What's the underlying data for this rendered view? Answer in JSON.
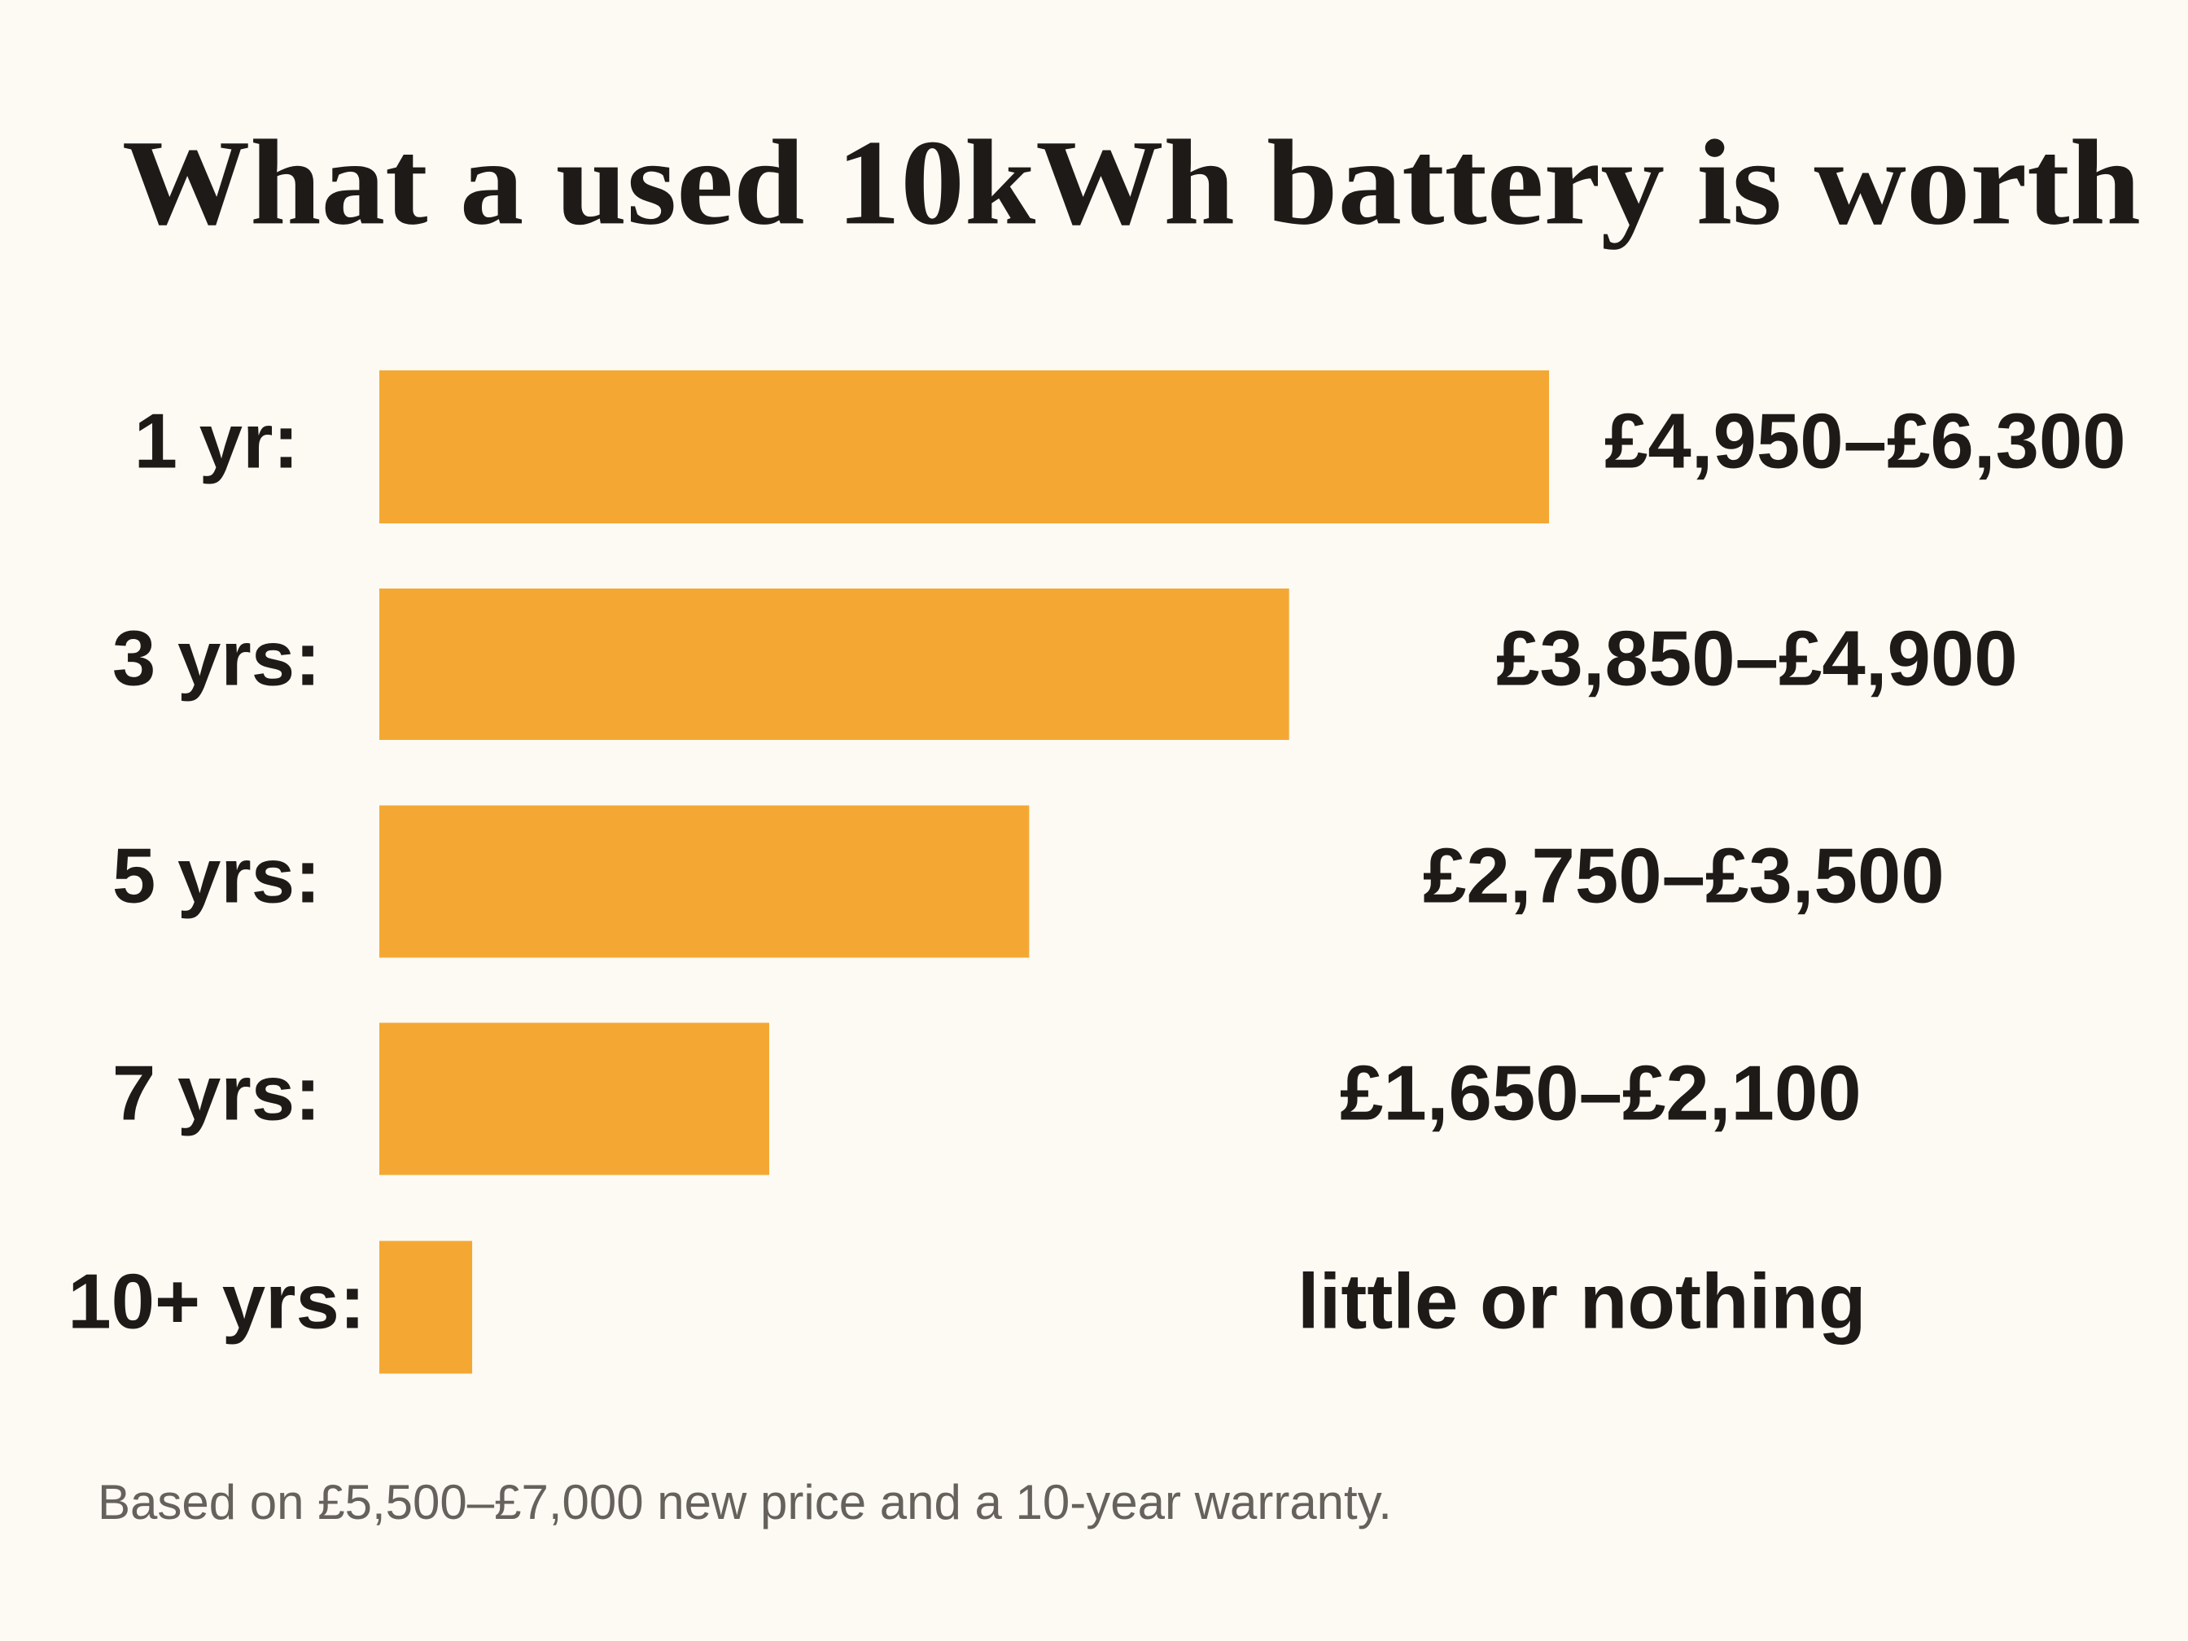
{
  "chart_data": {
    "type": "bar",
    "orientation": "horizontal",
    "title": "What a used 10kWh battery is worth",
    "categories": [
      "1 yr:",
      "3 yrs:",
      "5 yrs:",
      "7 yrs:",
      "10+ yrs:"
    ],
    "values": [
      6300,
      4900,
      3500,
      2100,
      500
    ],
    "value_labels": [
      "£4,950–£6,300",
      "£3,850–£4,900",
      "£2,750–£3,500",
      "£1,650–£2,100",
      "little or nothing"
    ],
    "color": "#f4a833",
    "note": "Based on £5,500–£7,000 new price and a 10-year warranty."
  }
}
